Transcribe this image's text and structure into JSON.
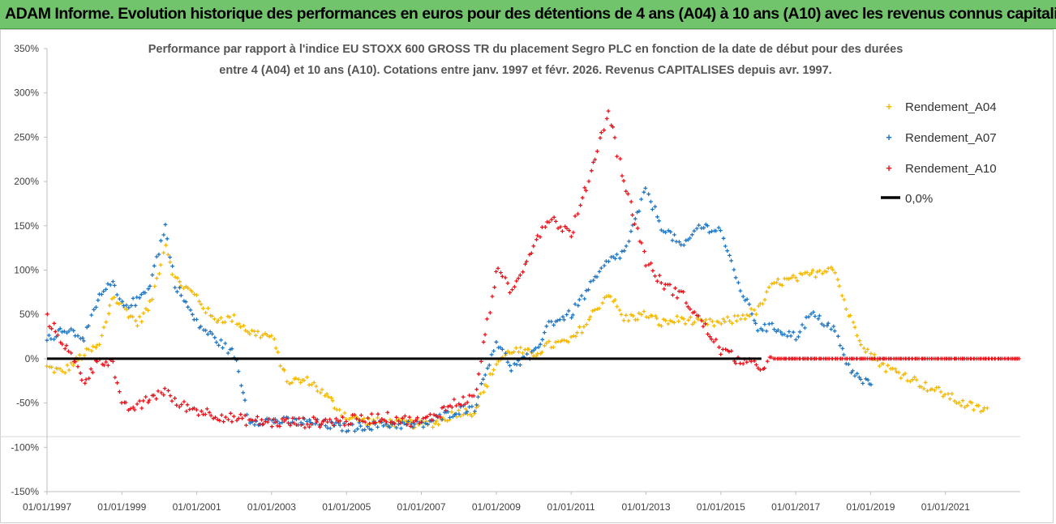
{
  "banner": {
    "text": "ADAM Informe. Evolution historique des performances en euros pour des détentions de 4 ans (A04) à 10 ans (A10) avec les revenus connus capitalisés"
  },
  "colors": {
    "A04": "#f5b800",
    "A07": "#1f77c4",
    "A10": "#e8141c",
    "zero": "#000000",
    "banner_bg": "#71c46b"
  },
  "chart_data": {
    "type": "scatter",
    "title_lines": [
      "Performance par rapport à l'indice EU STOXX 600 GROSS TR  du placement Segro PLC en fonction de la date de début pour des durées",
      "entre 4 (A04) et 10 ans (A10). Cotations entre janv. 1997 et févr. 2026. Revenus CAPITALISES depuis avr. 1997."
    ],
    "x_axis": {
      "type": "date",
      "range": [
        "1997-01-01",
        "2023-01-01"
      ],
      "tick_labels": [
        "01/01/1997",
        "01/01/1999",
        "01/01/2001",
        "01/01/2003",
        "01/01/2005",
        "01/01/2007",
        "01/01/2009",
        "01/01/2011",
        "01/01/2013",
        "01/01/2015",
        "01/01/2017",
        "01/01/2019",
        "01/01/2021"
      ]
    },
    "y_axis": {
      "range": [
        -150,
        350
      ],
      "tick_labels": [
        "350%",
        "300%",
        "250%",
        "200%",
        "150%",
        "100%",
        "50%",
        "0%",
        "-50%",
        "-100%",
        "-150%"
      ]
    },
    "legend": {
      "placement": "top-right"
    },
    "series": [
      {
        "name": "Rendement_A04",
        "color": "#f5b800",
        "points": [
          [
            "1997-01-01",
            -10
          ],
          [
            "1997-06-01",
            -15
          ],
          [
            "1998-01-01",
            5
          ],
          [
            "1998-06-01",
            15
          ],
          [
            "1998-10-01",
            70
          ],
          [
            "1999-01-01",
            60
          ],
          [
            "1999-06-01",
            40
          ],
          [
            "1999-10-01",
            60
          ],
          [
            "2000-03-01",
            130
          ],
          [
            "2000-06-01",
            90
          ],
          [
            "2001-01-01",
            70
          ],
          [
            "2001-06-01",
            45
          ],
          [
            "2002-01-01",
            45
          ],
          [
            "2002-06-01",
            30
          ],
          [
            "2003-01-01",
            25
          ],
          [
            "2003-06-01",
            -25
          ],
          [
            "2004-01-01",
            -25
          ],
          [
            "2004-06-01",
            -40
          ],
          [
            "2004-10-01",
            -55
          ],
          [
            "2005-01-01",
            -65
          ],
          [
            "2005-06-01",
            -70
          ],
          [
            "2006-01-01",
            -72
          ],
          [
            "2007-01-01",
            -74
          ],
          [
            "2007-06-01",
            -72
          ],
          [
            "2008-01-01",
            -60
          ],
          [
            "2008-06-01",
            -60
          ],
          [
            "2009-01-01",
            -5
          ],
          [
            "2009-06-01",
            10
          ],
          [
            "2010-01-01",
            5
          ],
          [
            "2010-06-01",
            15
          ],
          [
            "2011-01-01",
            20
          ],
          [
            "2011-06-01",
            40
          ],
          [
            "2012-01-01",
            75
          ],
          [
            "2012-06-01",
            45
          ],
          [
            "2013-01-01",
            50
          ],
          [
            "2013-06-01",
            40
          ],
          [
            "2014-01-01",
            45
          ],
          [
            "2014-06-01",
            40
          ],
          [
            "2015-01-01",
            40
          ],
          [
            "2015-06-01",
            45
          ],
          [
            "2016-01-01",
            55
          ],
          [
            "2016-06-01",
            85
          ],
          [
            "2017-01-01",
            90
          ],
          [
            "2017-06-01",
            95
          ],
          [
            "2018-01-01",
            105
          ],
          [
            "2018-06-01",
            50
          ],
          [
            "2018-10-01",
            20
          ],
          [
            "2019-01-01",
            5
          ],
          [
            "2019-06-01",
            -10
          ],
          [
            "2020-01-01",
            -20
          ],
          [
            "2020-06-01",
            -30
          ],
          [
            "2021-01-01",
            -40
          ],
          [
            "2021-06-01",
            -50
          ],
          [
            "2022-01-01",
            -58
          ],
          [
            "2022-03-01",
            -56
          ]
        ]
      },
      {
        "name": "Rendement_A07",
        "color": "#1f77c4",
        "points": [
          [
            "1997-01-01",
            20
          ],
          [
            "1997-06-01",
            35
          ],
          [
            "1998-01-01",
            25
          ],
          [
            "1998-06-01",
            70
          ],
          [
            "1998-10-01",
            85
          ],
          [
            "1999-01-01",
            60
          ],
          [
            "1999-06-01",
            65
          ],
          [
            "1999-10-01",
            85
          ],
          [
            "2000-03-01",
            150
          ],
          [
            "2000-06-01",
            85
          ],
          [
            "2001-01-01",
            40
          ],
          [
            "2001-06-01",
            25
          ],
          [
            "2002-01-01",
            5
          ],
          [
            "2002-06-01",
            -70
          ],
          [
            "2003-01-01",
            -70
          ],
          [
            "2004-01-01",
            -72
          ],
          [
            "2005-01-01",
            -78
          ],
          [
            "2006-01-01",
            -74
          ],
          [
            "2007-01-01",
            -75
          ],
          [
            "2008-01-01",
            -58
          ],
          [
            "2008-06-01",
            -55
          ],
          [
            "2009-01-01",
            20
          ],
          [
            "2009-06-01",
            -10
          ],
          [
            "2010-01-01",
            5
          ],
          [
            "2010-06-01",
            40
          ],
          [
            "2011-01-01",
            50
          ],
          [
            "2011-06-01",
            75
          ],
          [
            "2012-01-01",
            110
          ],
          [
            "2012-06-01",
            120
          ],
          [
            "2013-01-01",
            190
          ],
          [
            "2013-06-01",
            150
          ],
          [
            "2014-01-01",
            125
          ],
          [
            "2014-06-01",
            150
          ],
          [
            "2015-01-01",
            145
          ],
          [
            "2015-06-01",
            90
          ],
          [
            "2016-01-01",
            35
          ],
          [
            "2016-06-01",
            35
          ],
          [
            "2017-01-01",
            25
          ],
          [
            "2017-06-01",
            50
          ],
          [
            "2018-01-01",
            35
          ],
          [
            "2018-06-01",
            -10
          ],
          [
            "2018-10-01",
            -25
          ],
          [
            "2019-02-01",
            -28
          ]
        ]
      },
      {
        "name": "Rendement_A10",
        "color": "#e8141c",
        "points": [
          [
            "1997-01-01",
            45
          ],
          [
            "1997-06-01",
            20
          ],
          [
            "1998-01-01",
            -25
          ],
          [
            "1998-06-01",
            0
          ],
          [
            "1998-10-01",
            -5
          ],
          [
            "1999-01-01",
            -55
          ],
          [
            "1999-06-01",
            -55
          ],
          [
            "1999-10-01",
            -45
          ],
          [
            "2000-03-01",
            -35
          ],
          [
            "2000-06-01",
            -50
          ],
          [
            "2001-01-01",
            -58
          ],
          [
            "2002-01-01",
            -68
          ],
          [
            "2003-01-01",
            -72
          ],
          [
            "2004-01-01",
            -72
          ],
          [
            "2005-01-01",
            -70
          ],
          [
            "2006-01-01",
            -66
          ],
          [
            "2007-01-01",
            -72
          ],
          [
            "2008-01-01",
            -48
          ],
          [
            "2008-06-01",
            -45
          ],
          [
            "2009-01-01",
            100
          ],
          [
            "2009-06-01",
            75
          ],
          [
            "2010-01-01",
            130
          ],
          [
            "2010-06-01",
            160
          ],
          [
            "2011-01-01",
            140
          ],
          [
            "2011-06-01",
            195
          ],
          [
            "2012-01-01",
            280
          ],
          [
            "2012-06-01",
            200
          ],
          [
            "2013-01-01",
            110
          ],
          [
            "2013-06-01",
            85
          ],
          [
            "2014-01-01",
            70
          ],
          [
            "2014-06-01",
            45
          ],
          [
            "2015-01-01",
            10
          ],
          [
            "2015-06-01",
            0
          ],
          [
            "2016-01-01",
            -10
          ],
          [
            "2016-06-01",
            0
          ],
          [
            "2017-01-01",
            0
          ],
          [
            "2018-01-01",
            0
          ],
          [
            "2019-01-01",
            0
          ],
          [
            "2020-01-01",
            0
          ],
          [
            "2021-01-01",
            0
          ],
          [
            "2022-01-01",
            0
          ],
          [
            "2023-01-01",
            0
          ]
        ]
      },
      {
        "name": "0,0%",
        "color": "#000000",
        "points": [
          [
            "1997-01-01",
            0
          ],
          [
            "2016-02-01",
            0
          ]
        ]
      }
    ]
  }
}
